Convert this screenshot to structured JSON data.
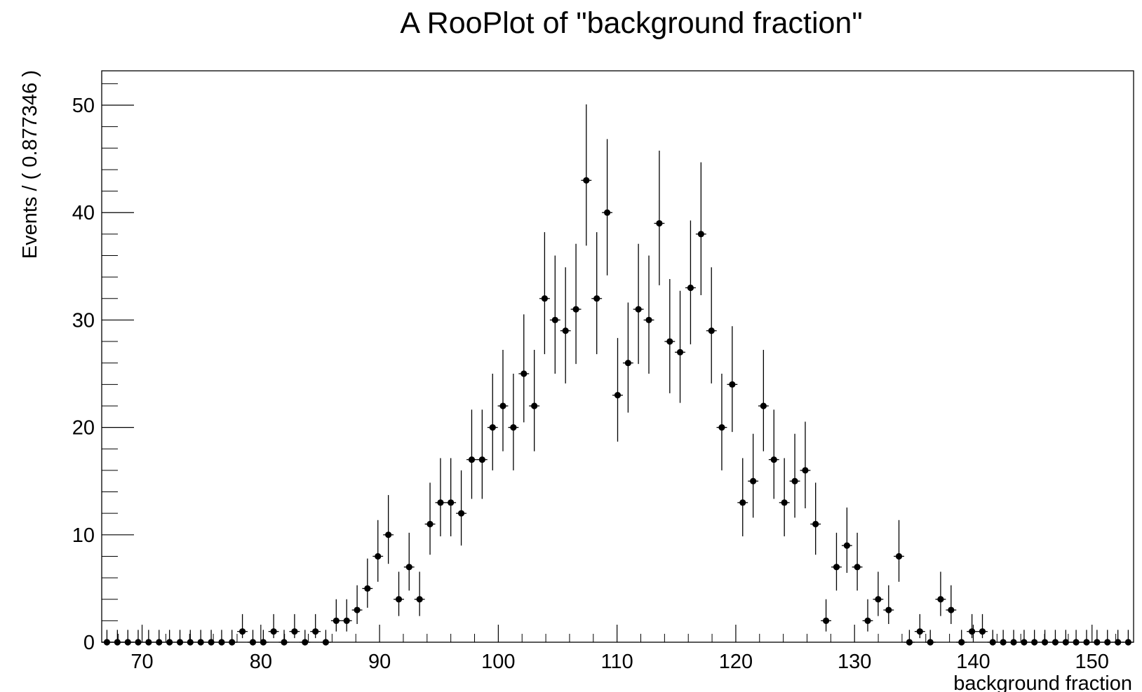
{
  "chart_data": {
    "type": "scatter",
    "title": "A RooPlot of \"background fraction\"",
    "xlabel": "background fraction",
    "ylabel": "Events / ( 0.877346 )",
    "xlim": [
      66.6,
      153.5
    ],
    "ylim": [
      0,
      53.2
    ],
    "x_ticks": [
      70,
      80,
      90,
      100,
      110,
      120,
      130,
      140,
      150
    ],
    "y_ticks": [
      0,
      10,
      20,
      30,
      40,
      50
    ],
    "bin_width": 0.877346,
    "grid": false,
    "legend": "none",
    "x": [
      67.04,
      67.92,
      68.8,
      69.67,
      70.55,
      71.43,
      72.31,
      73.19,
      74.06,
      74.94,
      75.82,
      76.7,
      77.57,
      78.45,
      79.33,
      80.21,
      81.08,
      81.96,
      82.84,
      83.72,
      84.6,
      85.47,
      86.35,
      87.23,
      88.11,
      88.98,
      89.86,
      90.74,
      91.62,
      92.49,
      93.37,
      94.25,
      95.13,
      96.0,
      96.88,
      97.76,
      98.64,
      99.52,
      100.39,
      101.27,
      102.15,
      103.03,
      103.9,
      104.78,
      105.66,
      106.54,
      107.41,
      108.29,
      109.17,
      110.05,
      110.93,
      111.8,
      112.68,
      113.56,
      114.44,
      115.31,
      116.19,
      117.07,
      117.95,
      118.82,
      119.7,
      120.58,
      121.46,
      122.33,
      123.21,
      124.09,
      124.97,
      125.85,
      126.72,
      127.6,
      128.48,
      129.36,
      130.23,
      131.11,
      131.99,
      132.87,
      133.74,
      134.62,
      135.5,
      136.38,
      137.25,
      138.13,
      139.01,
      139.89,
      140.77,
      141.64,
      142.52,
      143.4,
      144.28,
      145.15,
      146.03,
      146.91,
      147.79,
      148.66,
      149.54,
      150.42,
      151.3,
      152.18,
      153.05
    ],
    "y": [
      0,
      0,
      0,
      0,
      0,
      0,
      0,
      0,
      0,
      0,
      0,
      0,
      0,
      1,
      0,
      0,
      1,
      0,
      1,
      0,
      1,
      0,
      2,
      2,
      3,
      5,
      8,
      10,
      4,
      7,
      4,
      11,
      13,
      13,
      12,
      17,
      17,
      20,
      22,
      20,
      25,
      22,
      32,
      30,
      29,
      31,
      43,
      32,
      40,
      23,
      26,
      31,
      30,
      39,
      28,
      27,
      33,
      38,
      29,
      20,
      24,
      13,
      15,
      22,
      17,
      13,
      15,
      16,
      11,
      2,
      7,
      9,
      7,
      2,
      4,
      3,
      8,
      0,
      1,
      0,
      4,
      3,
      0,
      1,
      1,
      0,
      0,
      0,
      0,
      0,
      0,
      0,
      0,
      0,
      0,
      0,
      0,
      0,
      0
    ],
    "point_color": "#000000",
    "axis_color": "#000000"
  }
}
